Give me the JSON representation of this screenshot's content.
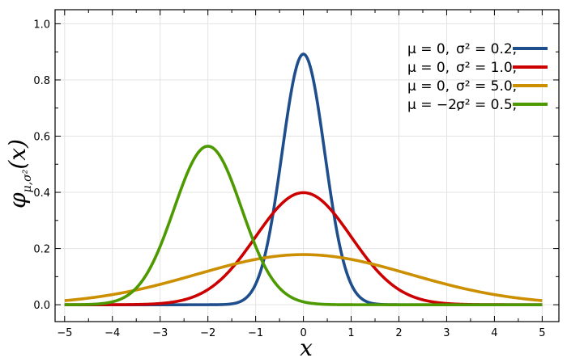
{
  "chart_data": {
    "type": "line",
    "title": "",
    "xlabel": "x",
    "ylabel_main": "φ",
    "ylabel_sub": "μ,σ²",
    "ylabel_arg": "(x)",
    "xlim": [
      -5.2,
      5.35
    ],
    "ylim": [
      -0.06,
      1.05
    ],
    "xticks": [
      -5,
      -4,
      -3,
      -2,
      -1,
      0,
      1,
      2,
      3,
      4,
      5
    ],
    "xtick_labels": [
      "−5",
      "−4",
      "−3",
      "−2",
      "−1",
      "0",
      "1",
      "2",
      "3",
      "4",
      "5"
    ],
    "yticks": [
      0.0,
      0.2,
      0.4,
      0.6,
      0.8,
      1.0
    ],
    "ytick_labels": [
      "0.0",
      "0.2",
      "0.4",
      "0.6",
      "0.8",
      "1.0"
    ],
    "grid": true,
    "legend_position": "top-right",
    "series": [
      {
        "mu": 0,
        "sigma2": 0.2,
        "color": "#1f4e8c",
        "legend_mu": "μ = 0,",
        "legend_s2": "σ² = 0.2,"
      },
      {
        "mu": 0,
        "sigma2": 1.0,
        "color": "#cc0000",
        "legend_mu": "μ = 0,",
        "legend_s2": "σ² = 1.0,"
      },
      {
        "mu": 0,
        "sigma2": 5.0,
        "color": "#cc8f00",
        "legend_mu": "μ = 0,",
        "legend_s2": "σ² = 5.0,"
      },
      {
        "mu": -2,
        "sigma2": 0.5,
        "color": "#4d9a00",
        "legend_mu": "μ = −2,",
        "legend_s2": "σ² = 0.5,"
      }
    ]
  }
}
